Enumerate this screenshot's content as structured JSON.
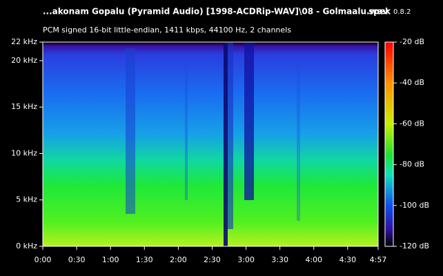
{
  "chart_data": {
    "type": "spectrogram",
    "title": "...akonam Gopalu (Pyramid Audio) [1998-ACDRip-WAV]\\08 - Golmaalu.wav",
    "app_name": "spek",
    "app_version": "0.8.2",
    "subtitle": "PCM signed 16-bit little-endian, 1411 kbps, 44100 Hz, 2 channels",
    "xlim": [
      0,
      297
    ],
    "xticks": [
      {
        "value": 0,
        "label": "0:00"
      },
      {
        "value": 30,
        "label": "0:30"
      },
      {
        "value": 60,
        "label": "1:00"
      },
      {
        "value": 90,
        "label": "1:30"
      },
      {
        "value": 120,
        "label": "2:00"
      },
      {
        "value": 150,
        "label": "2:30"
      },
      {
        "value": 180,
        "label": "3:00"
      },
      {
        "value": 210,
        "label": "3:30"
      },
      {
        "value": 240,
        "label": "4:00"
      },
      {
        "value": 270,
        "label": "4:30"
      },
      {
        "value": 297,
        "label": "4:57"
      }
    ],
    "ylim": [
      0,
      22
    ],
    "yticks": [
      {
        "value": 0,
        "label": "0 kHz"
      },
      {
        "value": 5,
        "label": "5 kHz"
      },
      {
        "value": 10,
        "label": "10 kHz"
      },
      {
        "value": 15,
        "label": "15 kHz"
      },
      {
        "value": 20,
        "label": "20 kHz"
      },
      {
        "value": 22,
        "label": "22 kHz"
      }
    ],
    "zlim": [
      -120,
      -20
    ],
    "zticks": [
      {
        "value": -20,
        "label": "-20 dB"
      },
      {
        "value": -40,
        "label": "-40 dB"
      },
      {
        "value": -60,
        "label": "-60 dB"
      },
      {
        "value": -80,
        "label": "-80 dB"
      },
      {
        "value": -100,
        "label": "-100 dB"
      },
      {
        "value": -120,
        "label": "-120 dB"
      }
    ]
  }
}
